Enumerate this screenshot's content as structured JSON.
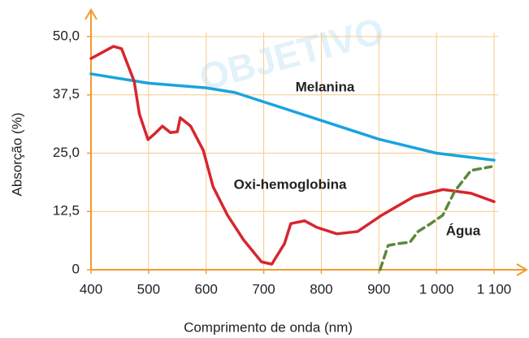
{
  "chart_data": {
    "type": "line",
    "xlabel": "Comprimento de onda (nm)",
    "ylabel": "Absorção (%)",
    "watermark": "OBJETIVO",
    "xlim": [
      400,
      1100
    ],
    "ylim": [
      0,
      50
    ],
    "xticks": [
      400,
      500,
      600,
      700,
      800,
      900,
      {
        "value": 1000,
        "label": "1 000"
      },
      {
        "value": 1100,
        "label": "1 100"
      }
    ],
    "yticks": [
      0,
      {
        "value": 12.5,
        "label": "12,5"
      },
      {
        "value": 25,
        "label": "25,0"
      },
      {
        "value": 37.5,
        "label": "37,5"
      },
      {
        "value": 50,
        "label": "50,0"
      }
    ],
    "grid": true,
    "series": [
      {
        "name": "Melanina",
        "color": "#1aa3e0",
        "line_style": "solid",
        "x": [
          400,
          500,
          600,
          650,
          700,
          800,
          900,
          1000,
          1100
        ],
        "values": [
          42,
          40,
          39,
          38,
          36,
          32,
          28,
          25,
          23.5
        ]
      },
      {
        "name": "Oxi-hemoglobina",
        "color": "#d7262e",
        "line_style": "solid",
        "x": [
          400,
          439,
          453,
          475,
          484,
          499,
          510,
          524,
          538,
          550,
          555,
          573,
          595,
          612,
          637,
          665,
          696,
          714,
          736,
          747,
          771,
          792,
          827,
          863,
          905,
          961,
          1011,
          1060,
          1100
        ],
        "values": [
          45.3,
          47.9,
          47.4,
          40.4,
          33.4,
          27.9,
          29.1,
          30.8,
          29.4,
          29.6,
          32.6,
          30.8,
          25.6,
          17.8,
          11.7,
          6.4,
          1.7,
          1.2,
          5.6,
          9.9,
          10.5,
          9.1,
          7.7,
          8.2,
          11.7,
          15.7,
          17.2,
          16.4,
          14.6
        ]
      },
      {
        "name": "Água",
        "color": "#5a8a3c",
        "line_style": "dashed",
        "x": [
          902,
          916,
          933,
          954,
          968,
          990,
          1011,
          1032,
          1060,
          1095
        ],
        "values": [
          0,
          5.2,
          5.6,
          5.9,
          8.2,
          9.9,
          11.7,
          16.9,
          21.3,
          22.1
        ]
      }
    ]
  }
}
